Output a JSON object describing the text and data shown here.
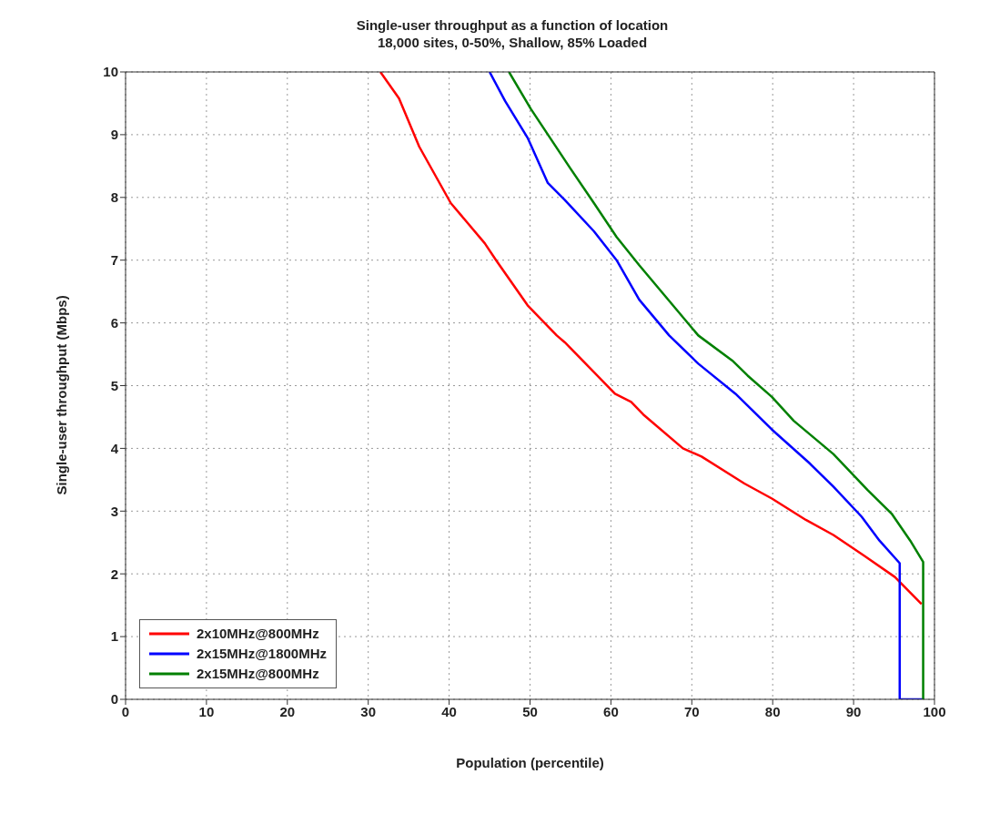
{
  "chart_data": {
    "type": "line",
    "title": "Single-user throughput as a function of location",
    "subtitle": "18,000 sites, 0-50%, Shallow, 85% Loaded",
    "xlabel": "Population (percentile)",
    "ylabel": "Single-user throughput (Mbps)",
    "xlim": [
      0,
      100
    ],
    "ylim": [
      0,
      10
    ],
    "xticks": [
      0,
      10,
      20,
      30,
      40,
      50,
      60,
      70,
      80,
      90,
      100
    ],
    "yticks": [
      0,
      1,
      2,
      3,
      4,
      5,
      6,
      7,
      8,
      9,
      10
    ],
    "grid": true,
    "legend": "bottom left",
    "marker": "none",
    "line_style": "solid",
    "series": [
      {
        "name": "2x10MHz@800MHz",
        "color": "#ff0000",
        "x": [
          31.5,
          33.8,
          36.3,
          40.2,
          44.4,
          45.8,
          49.7,
          53.3,
          54.3,
          60.5,
          62.5,
          64,
          68.9,
          71.2,
          76.5,
          79.9,
          84.1,
          87.5,
          91.3,
          95.1,
          98.4
        ],
        "values": [
          10,
          9.58,
          8.81,
          7.91,
          7.27,
          7,
          6.28,
          5.8,
          5.69,
          4.87,
          4.74,
          4.54,
          4,
          3.87,
          3.44,
          3.2,
          2.86,
          2.62,
          2.29,
          1.95,
          1.52
        ]
      },
      {
        "name": "2x15MHz@1800MHz",
        "color": "#0000ff",
        "x": [
          45,
          46.9,
          49.7,
          52.2,
          54.3,
          57.9,
          60.7,
          63.5,
          67.2,
          70.8,
          75.4,
          79.9,
          84.5,
          87.5,
          91,
          93.2,
          95.7,
          95.7,
          98.7
        ],
        "values": [
          10,
          9.54,
          8.95,
          8.23,
          7.96,
          7.46,
          7,
          6.37,
          5.8,
          5.35,
          4.87,
          4.3,
          3.77,
          3.39,
          2.91,
          2.53,
          2.17,
          0,
          0
        ]
      },
      {
        "name": "2x15MHz@800MHz",
        "color": "#008000",
        "x": [
          47.4,
          50.1,
          55,
          57.9,
          60.7,
          63.5,
          70.8,
          75,
          76.9,
          79.9,
          82.6,
          87.5,
          91.7,
          94.7,
          97,
          98.6,
          98.6
        ],
        "values": [
          10,
          9.41,
          8.46,
          7.91,
          7.37,
          6.92,
          5.8,
          5.4,
          5.16,
          4.82,
          4.44,
          3.91,
          3.34,
          2.96,
          2.53,
          2.19,
          0
        ]
      }
    ]
  }
}
